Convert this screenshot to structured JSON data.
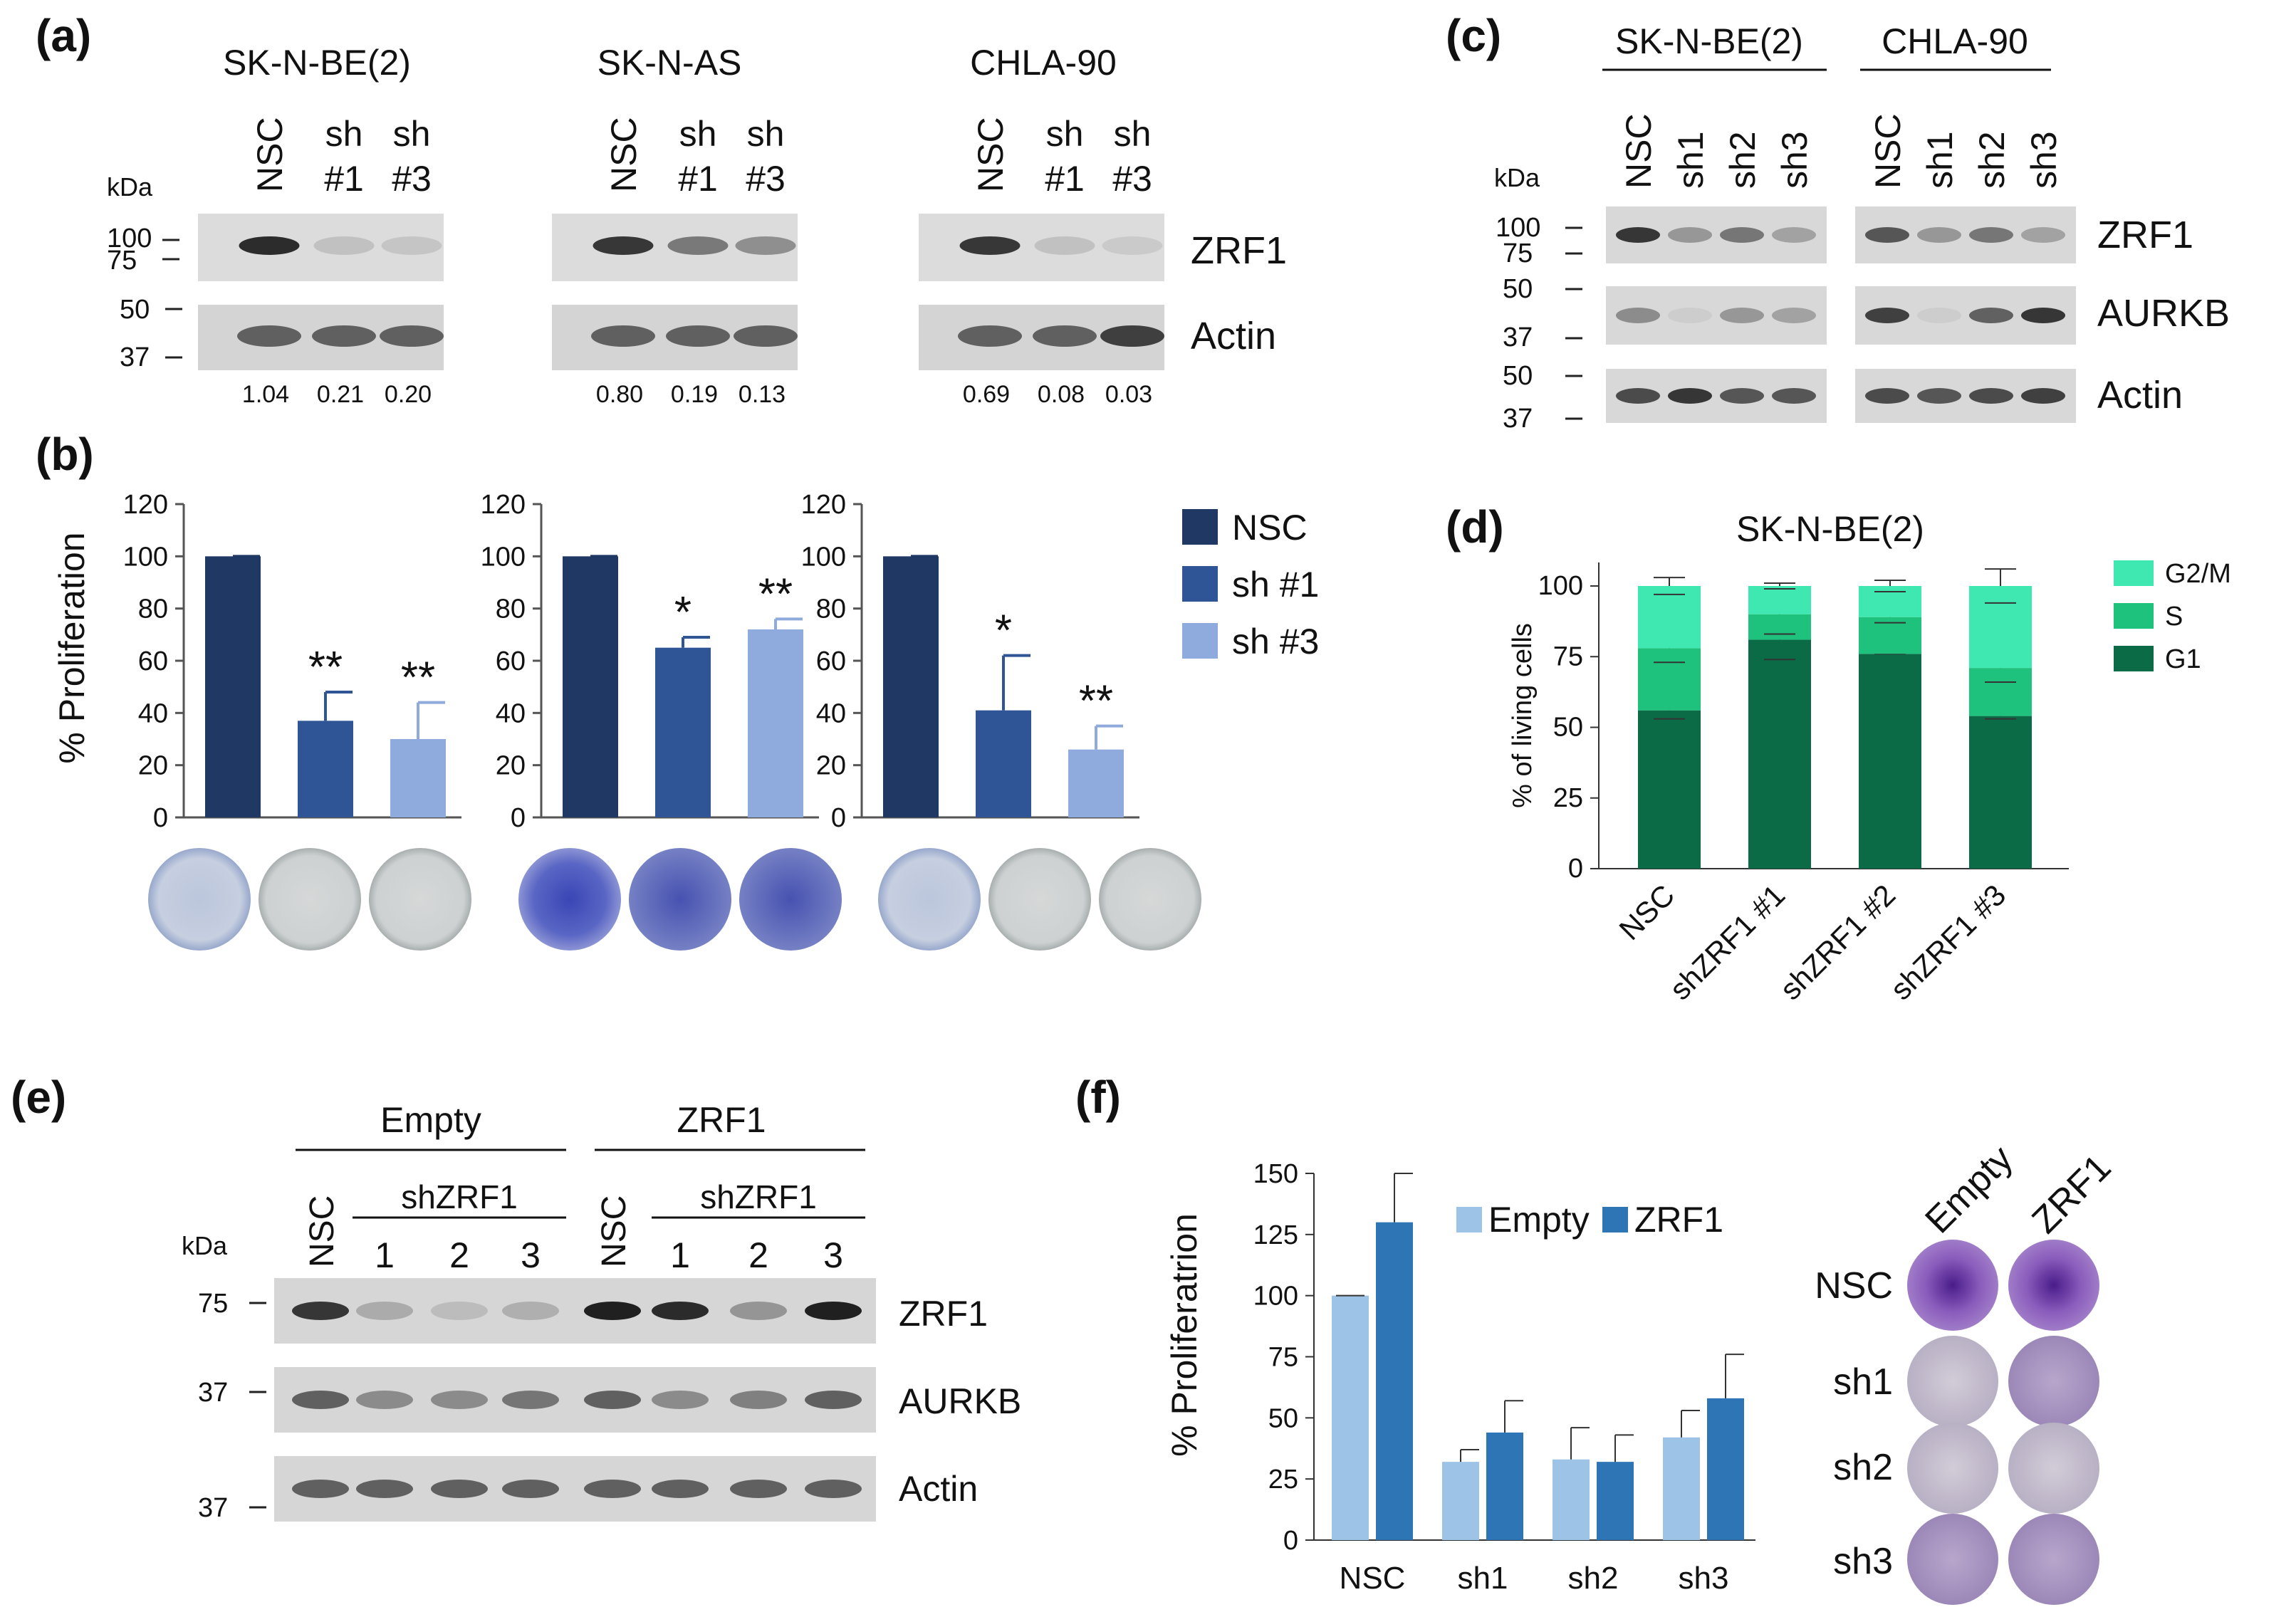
{
  "panel_a": {
    "label": "(a)",
    "kda": "kDa",
    "mw_markers": [
      "100",
      "75",
      "50",
      "37"
    ],
    "protein_labels": [
      "ZRF1",
      "Actin"
    ],
    "blots": [
      {
        "cell_line": "SK-N-BE(2)",
        "lanes": [
          "NSC",
          "sh\n#1",
          "sh\n#3"
        ],
        "quant": [
          "1.04",
          "0.21",
          "0.20"
        ]
      },
      {
        "cell_line": "SK-N-AS",
        "lanes": [
          "NSC",
          "sh\n#1",
          "sh\n#3"
        ],
        "quant": [
          "0.80",
          "0.19",
          "0.13"
        ]
      },
      {
        "cell_line": "CHLA-90",
        "lanes": [
          "NSC",
          "sh\n#1",
          "sh\n#3"
        ],
        "quant": [
          "0.69",
          "0.08",
          "0.03"
        ]
      }
    ]
  },
  "panel_c": {
    "label": "(c)",
    "kda": "kDa",
    "mw_markers": [
      "100",
      "75",
      "50",
      "37",
      "50",
      "37"
    ],
    "groups": [
      "SK-N-BE(2)",
      "CHLA-90"
    ],
    "lanes": [
      "NSC",
      "sh1",
      "sh2",
      "sh3"
    ],
    "protein_labels": [
      "ZRF1",
      "AURKB",
      "Actin"
    ]
  },
  "panel_e": {
    "label": "(e)",
    "kda": "kDa",
    "mw_markers": [
      "75",
      "37",
      "37"
    ],
    "groups": [
      "Empty",
      "ZRF1"
    ],
    "sub_label": "shZRF1",
    "lanes": [
      "NSC",
      "1",
      "2",
      "3"
    ],
    "protein_labels": [
      "ZRF1",
      "AURKB",
      "Actin"
    ]
  },
  "colors": {
    "nsc": "#1f3864",
    "sh1": "#2f5597",
    "sh3": "#8faadc",
    "g1": "#0b6b47",
    "s": "#1ec27c",
    "g2m": "#3ee8b0",
    "empty": "#9dc3e6",
    "zrf1": "#2e75b6"
  },
  "chart_data": [
    {
      "panel": "(b)",
      "type": "bar",
      "ylabel": "% Proliferation",
      "ylim": [
        0,
        120
      ],
      "yticks": [
        "0",
        "20",
        "40",
        "60",
        "80",
        "100",
        "120"
      ],
      "legend": [
        "NSC",
        "sh #1",
        "sh #3"
      ],
      "subcharts": [
        {
          "values": [
            100,
            37,
            30
          ],
          "errors": [
            0,
            11,
            14
          ],
          "sig": [
            "",
            "**",
            "**"
          ]
        },
        {
          "values": [
            100,
            65,
            72
          ],
          "errors": [
            0,
            4,
            4
          ],
          "sig": [
            "",
            "*",
            "**"
          ]
        },
        {
          "values": [
            100,
            41,
            26
          ],
          "errors": [
            0,
            21,
            9
          ],
          "sig": [
            "",
            "*",
            "**"
          ]
        }
      ]
    },
    {
      "panel": "(d)",
      "type": "bar",
      "stacked": true,
      "title": "SK-N-BE(2)",
      "ylabel": "% of living cells",
      "ylim": [
        0,
        100
      ],
      "yticks": [
        "0",
        "25",
        "50",
        "75",
        "100"
      ],
      "categories": [
        "NSC",
        "shZRF1 #1",
        "shZRF1 #2",
        "shZRF1 #3"
      ],
      "series": [
        {
          "name": "G1",
          "values": [
            56,
            81,
            76,
            54
          ],
          "errors": [
            3,
            7,
            0,
            1
          ]
        },
        {
          "name": "S",
          "values": [
            22,
            9,
            13,
            17
          ],
          "errors": [
            5,
            7,
            2,
            5
          ]
        },
        {
          "name": "G2/M",
          "values": [
            22,
            10,
            11,
            29
          ],
          "errors": [
            3,
            1,
            2,
            6
          ]
        }
      ],
      "legend": [
        "G2/M",
        "S",
        "G1"
      ]
    },
    {
      "panel": "(f)",
      "type": "bar",
      "ylabel": "% Proliferatrion",
      "ylim": [
        0,
        150
      ],
      "yticks": [
        "0",
        "25",
        "50",
        "75",
        "100",
        "125",
        "150"
      ],
      "categories": [
        "NSC",
        "sh1",
        "sh2",
        "sh3"
      ],
      "series": [
        {
          "name": "Empty",
          "values": [
            100,
            32,
            33,
            42
          ],
          "errors": [
            0,
            5,
            13,
            11
          ]
        },
        {
          "name": "ZRF1",
          "values": [
            130,
            44,
            32,
            58
          ],
          "errors": [
            20,
            13,
            11,
            18
          ]
        }
      ],
      "plate_cols": [
        "Empty",
        "ZRF1"
      ],
      "plate_rows": [
        "NSC",
        "sh1",
        "sh2",
        "sh3"
      ]
    }
  ]
}
